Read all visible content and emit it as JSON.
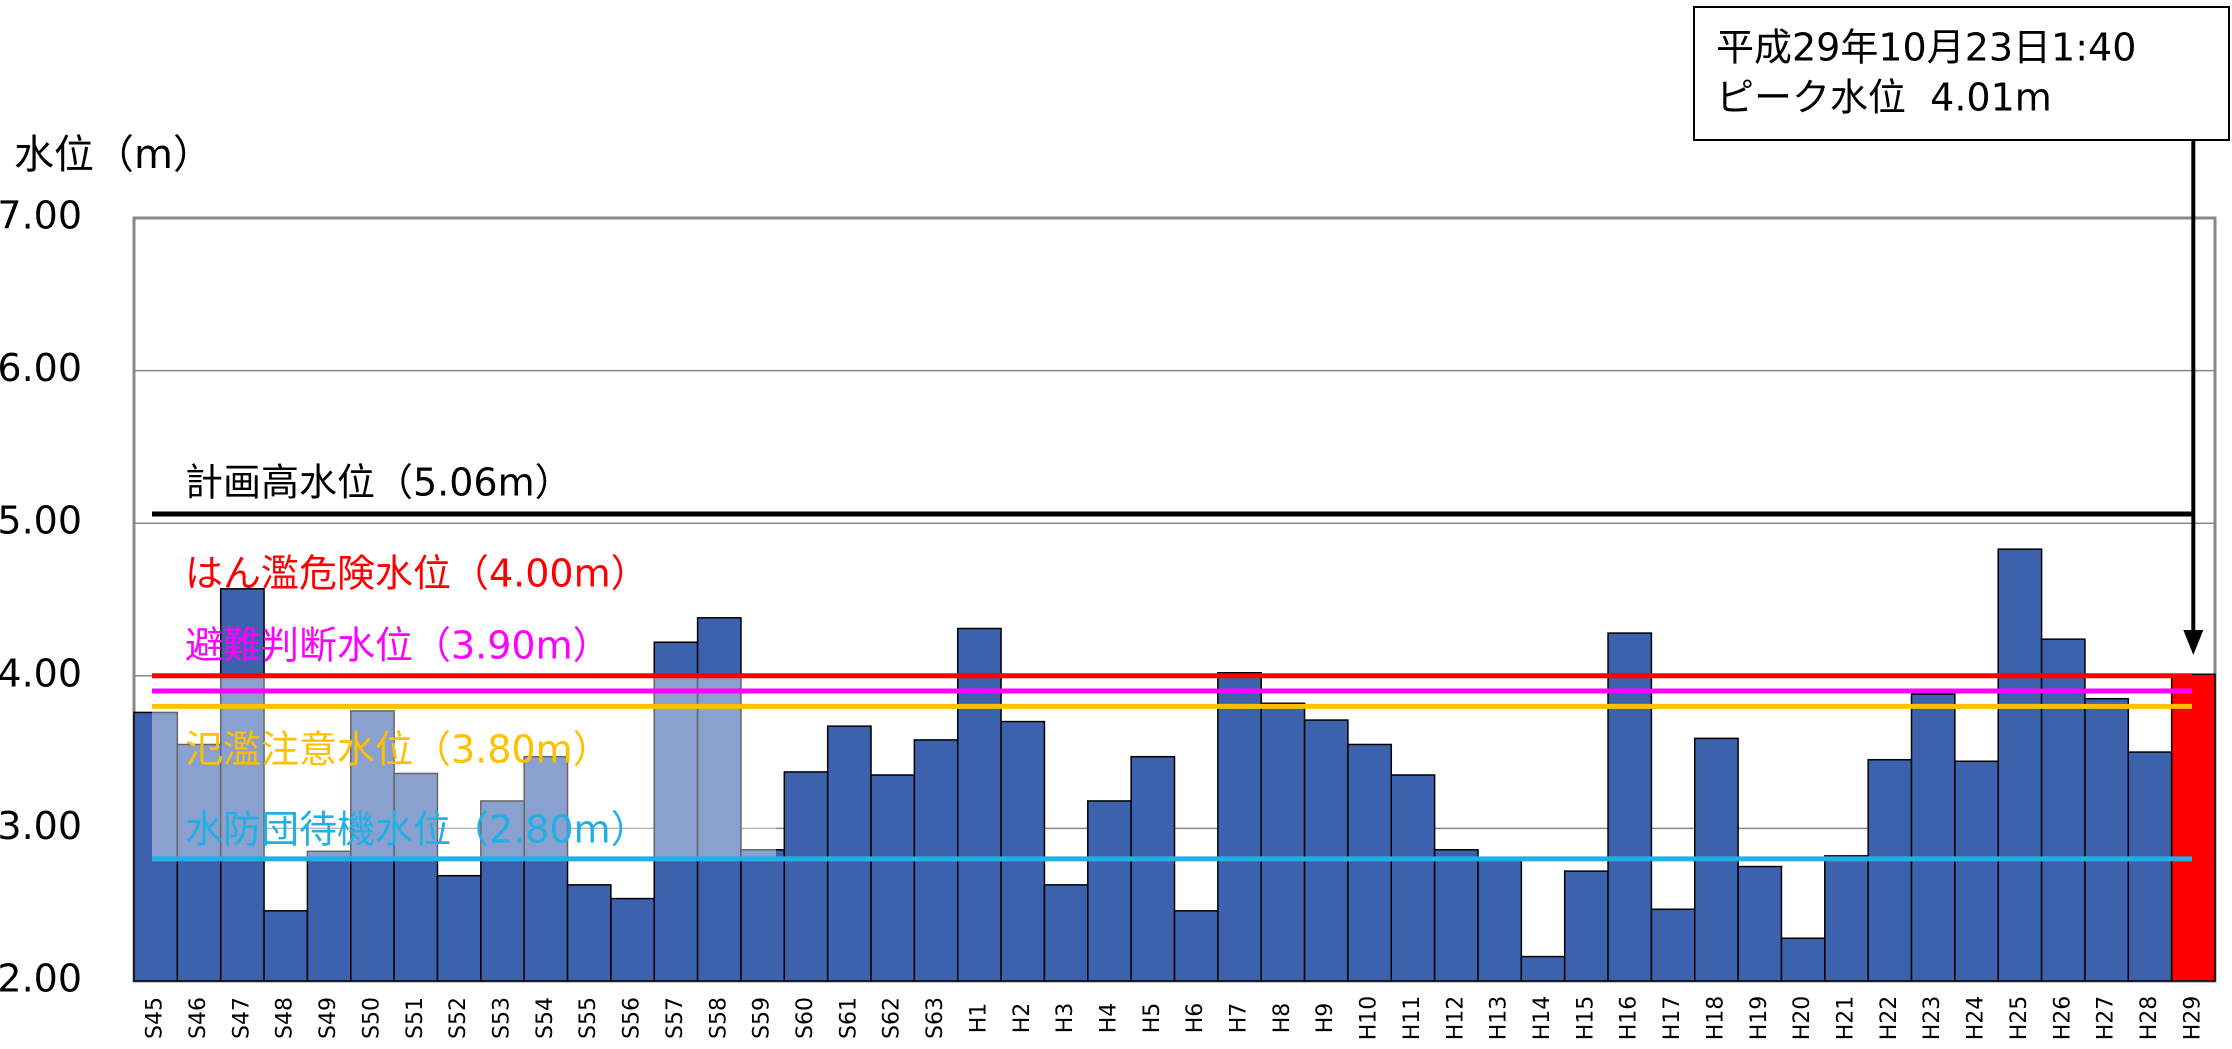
{
  "chart_data": {
    "type": "bar",
    "y_label": "水位（m）",
    "categories": [
      "S45",
      "S46",
      "S47",
      "S48",
      "S49",
      "S50",
      "S51",
      "S52",
      "S53",
      "S54",
      "S55",
      "S56",
      "S57",
      "S58",
      "S59",
      "S60",
      "S61",
      "S62",
      "S63",
      "H1",
      "H2",
      "H3",
      "H4",
      "H5",
      "H6",
      "H7",
      "H8",
      "H9",
      "H10",
      "H11",
      "H12",
      "H13",
      "H14",
      "H15",
      "H16",
      "H17",
      "H18",
      "H19",
      "H20",
      "H21",
      "H22",
      "H23",
      "H24",
      "H25",
      "H26",
      "H27",
      "H28",
      "H29"
    ],
    "values": [
      3.76,
      3.55,
      4.57,
      2.46,
      2.85,
      3.77,
      3.36,
      2.69,
      3.18,
      3.47,
      2.63,
      2.54,
      4.22,
      4.38,
      2.86,
      3.37,
      3.67,
      3.35,
      3.58,
      4.31,
      3.7,
      2.63,
      3.18,
      3.47,
      2.46,
      4.02,
      3.82,
      3.71,
      3.55,
      3.35,
      2.86,
      2.81,
      2.16,
      2.72,
      4.28,
      2.47,
      3.59,
      2.75,
      2.28,
      2.82,
      3.45,
      3.88,
      3.44,
      4.83,
      4.24,
      3.85,
      3.5,
      4.01
    ],
    "colors": [
      "#3d62ad",
      "#3d62ad",
      "#3d62ad",
      "#3d62ad",
      "#3d62ad",
      "#3d62ad",
      "#3d62ad",
      "#3d62ad",
      "#3d62ad",
      "#3d62ad",
      "#3d62ad",
      "#3d62ad",
      "#3d62ad",
      "#3d62ad",
      "#3d62ad",
      "#3d62ad",
      "#3d62ad",
      "#3d62ad",
      "#3d62ad",
      "#3d62ad",
      "#3d62ad",
      "#3d62ad",
      "#3d62ad",
      "#3d62ad",
      "#3d62ad",
      "#3d62ad",
      "#3d62ad",
      "#3d62ad",
      "#3d62ad",
      "#3d62ad",
      "#3d62ad",
      "#3d62ad",
      "#3d62ad",
      "#3d62ad",
      "#3d62ad",
      "#3d62ad",
      "#3d62ad",
      "#3d62ad",
      "#3d62ad",
      "#3d62ad",
      "#3d62ad",
      "#3d62ad",
      "#3d62ad",
      "#3d62ad",
      "#3d62ad",
      "#3d62ad",
      "#3d62ad",
      "#ff0000"
    ],
    "ylim": [
      2,
      7
    ],
    "yticks": [
      {
        "value": 2,
        "label": "2.00"
      },
      {
        "value": 3,
        "label": "3.00"
      },
      {
        "value": 4,
        "label": "4.00"
      },
      {
        "value": 5,
        "label": "5.00"
      },
      {
        "value": 6,
        "label": "6.00"
      },
      {
        "value": 7,
        "label": "7.00"
      }
    ],
    "grid": true,
    "reference_lines": [
      {
        "label": "計画高水位（5.06m）",
        "value": 5.06,
        "color": "#000000"
      },
      {
        "label": "はん濫危険水位（4.00m）",
        "value": 4.0,
        "color": "#ff0000"
      },
      {
        "label": "避難判断水位（3.90m）",
        "value": 3.9,
        "color": "#ff00ff"
      },
      {
        "label": "氾濫注意水位（3.80m）",
        "value": 3.8,
        "color": "#ffc000"
      },
      {
        "label": "水防団待機水位（2.80m）",
        "value": 2.8,
        "color": "#1fb1e6"
      }
    ],
    "annotation": {
      "lines": [
        "平成29年10月23日1:40",
        "ピーク水位  4.01m"
      ]
    }
  }
}
